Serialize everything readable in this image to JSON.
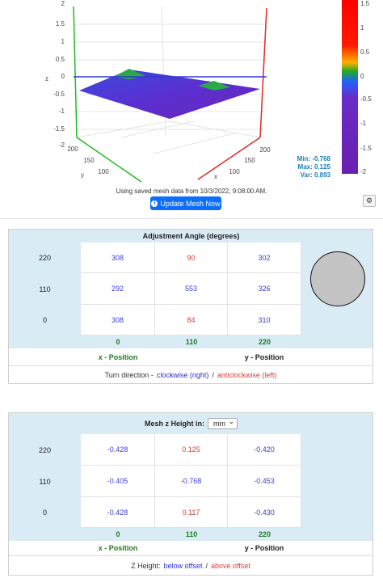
{
  "plot": {
    "z_axis_label": "z",
    "z_ticks": [
      "2",
      "1.5",
      "1",
      "0.5",
      "0",
      "-0.5",
      "-1",
      "-1.5",
      "-2"
    ],
    "y_axis_label": "y",
    "y_ticks": [
      "200",
      "150",
      "100"
    ],
    "x_axis_label": "x",
    "x_ticks": [
      "200",
      "150",
      "100"
    ],
    "colorbar_ticks": [
      "1.5",
      "1",
      "0.5",
      "0",
      "-0.5",
      "-1",
      "-1.5",
      "-2"
    ],
    "stats": [
      "Min: -0.768",
      "Max: 0.125",
      "Var: 0.893"
    ]
  },
  "status": "Using saved mesh data from 10/3/2022, 9:08:00 AM.",
  "update_button": "Update Mesh Now",
  "angle_table": {
    "title": "Adjustment Angle (degrees)",
    "row_labels": [
      "220",
      "110",
      "0"
    ],
    "rows": [
      [
        "308",
        "90",
        "302"
      ],
      [
        "292",
        "553",
        "326"
      ],
      [
        "308",
        "84",
        "310"
      ]
    ],
    "cell_colors": [
      [
        "#3b3bdc",
        "#e23a3a",
        "#3b3bdc"
      ],
      [
        "#3b3bdc",
        "#3b3bdc",
        "#3b3bdc"
      ],
      [
        "#3b3bdc",
        "#e23a3a",
        "#3b3bdc"
      ]
    ],
    "column_labels": [
      "0",
      "110",
      "220"
    ],
    "x_label": "x - Position",
    "y_label": "y - Position",
    "note": [
      "Turn direction -",
      "clockwise (right)",
      "/",
      "anticlockwise (left)"
    ]
  },
  "mesh_table": {
    "title": "Mesh z Height in:",
    "unit": "mm",
    "row_labels": [
      "220",
      "110",
      "0"
    ],
    "rows": [
      [
        "-0.428",
        "0.125",
        "-0.420"
      ],
      [
        "-0.405",
        "-0.768",
        "-0.453"
      ],
      [
        "-0.428",
        "0.117",
        "-0.430"
      ]
    ],
    "cell_colors": [
      [
        "#3b3bdc",
        "#e23a3a",
        "#3b3bdc"
      ],
      [
        "#3b3bdc",
        "#3b3bdc",
        "#3b3bdc"
      ],
      [
        "#3b3bdc",
        "#e23a3a",
        "#3b3bdc"
      ]
    ],
    "column_labels": [
      "0",
      "110",
      "220"
    ],
    "x_label": "x - Position",
    "y_label": "y - Position",
    "note": [
      "Z Height:",
      "below offset",
      "/",
      "above offset"
    ]
  }
}
